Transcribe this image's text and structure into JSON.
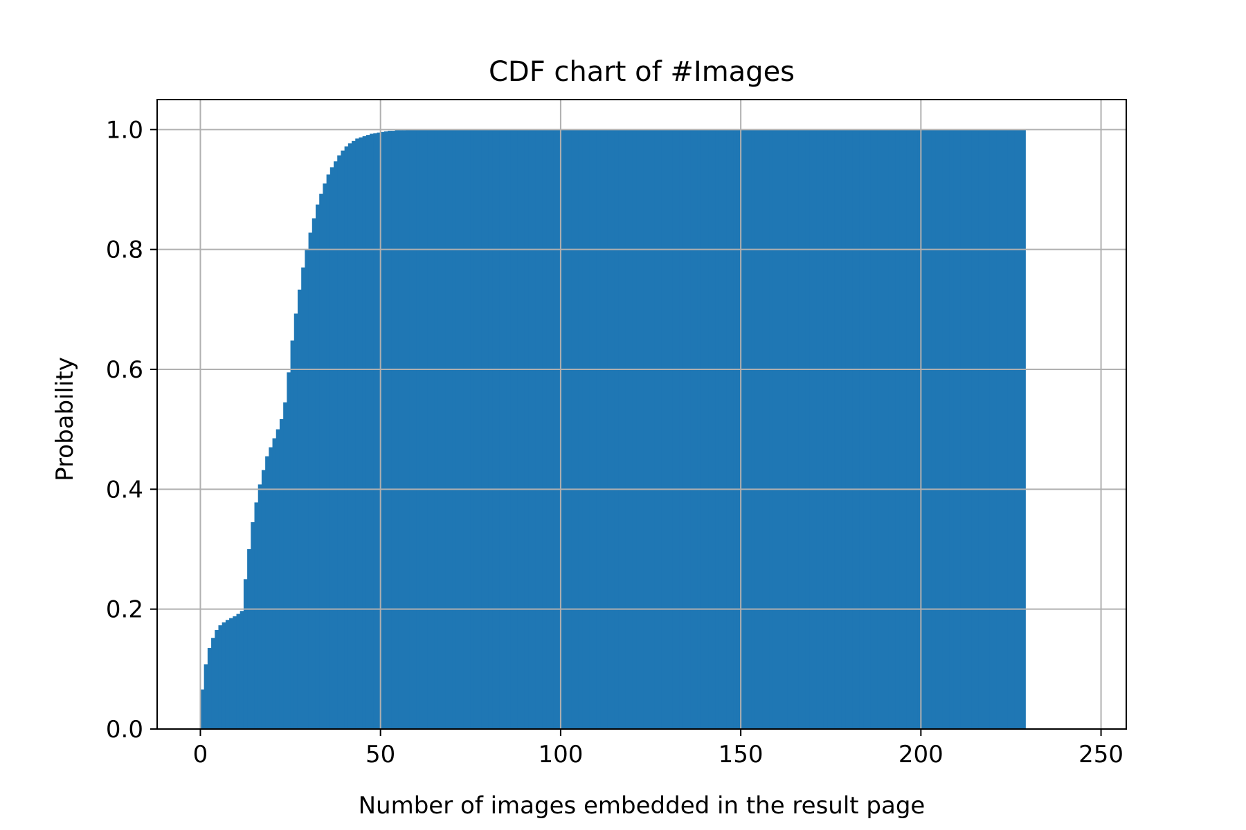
{
  "chart_data": {
    "type": "bar",
    "title": "CDF chart of #Images",
    "xlabel": "Number of images embedded in the result page",
    "ylabel": "Probability",
    "xlim": [
      -12,
      257
    ],
    "ylim": [
      0,
      1.05
    ],
    "xticks": [
      0,
      50,
      100,
      150,
      200,
      250
    ],
    "xtick_labels": [
      "0",
      "50",
      "100",
      "150",
      "200",
      "250"
    ],
    "yticks": [
      0,
      0.2,
      0.4,
      0.6,
      0.8,
      1.0
    ],
    "ytick_labels": [
      "0.0",
      "0.2",
      "0.4",
      "0.6",
      "0.8",
      "1.0"
    ],
    "grid": true,
    "bar_color": "#1f77b4",
    "bin_width": 1,
    "bin_start": 0,
    "values": [
      0.066,
      0.108,
      0.135,
      0.152,
      0.165,
      0.173,
      0.178,
      0.182,
      0.185,
      0.188,
      0.192,
      0.197,
      0.25,
      0.3,
      0.345,
      0.378,
      0.408,
      0.432,
      0.455,
      0.47,
      0.485,
      0.5,
      0.517,
      0.545,
      0.595,
      0.648,
      0.693,
      0.733,
      0.77,
      0.8,
      0.828,
      0.852,
      0.875,
      0.893,
      0.91,
      0.925,
      0.937,
      0.947,
      0.957,
      0.965,
      0.972,
      0.977,
      0.981,
      0.985,
      0.987,
      0.989,
      0.991,
      0.993,
      0.994,
      0.995,
      0.996,
      0.997,
      0.998,
      0.998,
      0.999,
      0.999,
      0.999,
      1.0,
      1.0,
      1.0,
      1.0,
      1.0,
      1.0,
      1.0,
      1.0,
      1.0,
      1.0,
      1.0,
      1.0,
      1.0,
      1.0,
      1.0,
      1.0,
      1.0,
      1.0,
      1.0,
      1.0,
      1.0,
      1.0,
      1.0,
      1.0,
      1.0,
      1.0,
      1.0,
      1.0,
      1.0,
      1.0,
      1.0,
      1.0,
      1.0,
      1.0,
      1.0,
      1.0,
      1.0,
      1.0,
      1.0,
      1.0,
      1.0,
      1.0,
      1.0,
      1.0,
      1.0,
      1.0,
      1.0,
      1.0,
      1.0,
      1.0,
      1.0,
      1.0,
      1.0,
      1.0,
      1.0,
      1.0,
      1.0,
      1.0,
      1.0,
      1.0,
      1.0,
      1.0,
      1.0,
      1.0,
      1.0,
      1.0,
      1.0,
      1.0,
      1.0,
      1.0,
      1.0,
      1.0,
      1.0,
      1.0,
      1.0,
      1.0,
      1.0,
      1.0,
      1.0,
      1.0,
      1.0,
      1.0,
      1.0,
      1.0,
      1.0,
      1.0,
      1.0,
      1.0,
      1.0,
      1.0,
      1.0,
      1.0,
      1.0,
      1.0,
      1.0,
      1.0,
      1.0,
      1.0,
      1.0,
      1.0,
      1.0,
      1.0,
      1.0,
      1.0,
      1.0,
      1.0,
      1.0,
      1.0,
      1.0,
      1.0,
      1.0,
      1.0,
      1.0,
      1.0,
      1.0,
      1.0,
      1.0,
      1.0,
      1.0,
      1.0,
      1.0,
      1.0,
      1.0,
      1.0,
      1.0,
      1.0,
      1.0,
      1.0,
      1.0,
      1.0,
      1.0,
      1.0,
      1.0,
      1.0,
      1.0,
      1.0,
      1.0,
      1.0,
      1.0,
      1.0,
      1.0,
      1.0,
      1.0,
      1.0,
      1.0,
      1.0,
      1.0,
      1.0,
      1.0,
      1.0,
      1.0,
      1.0,
      1.0,
      1.0,
      1.0,
      1.0,
      1.0,
      1.0,
      1.0,
      1.0,
      1.0,
      1.0,
      1.0,
      1.0,
      1.0,
      1.0,
      1.0,
      1.0,
      1.0,
      1.0,
      1.0,
      1.0
    ]
  }
}
